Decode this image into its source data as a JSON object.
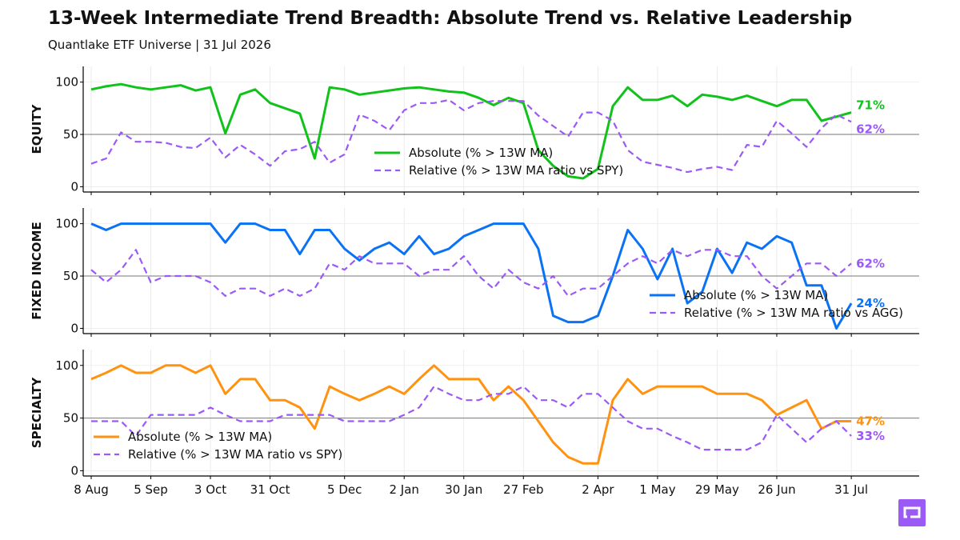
{
  "header": {
    "title": "13-Week Intermediate Trend Breadth: Absolute Trend vs. Relative Leadership",
    "subtitle": "Quantlake ETF Universe  |  31 Jul 2026"
  },
  "colors": {
    "equity": "#11c21b",
    "fixed_income": "#0a72f5",
    "specialty": "#ff9311",
    "relative": "#9b59f6",
    "logo": "#9b59f6"
  },
  "icons": {
    "logo": "brand-logo-icon"
  },
  "chart_data": [
    {
      "type": "line",
      "panel": "equity",
      "ylabel": "EQUITY",
      "ylim": [
        -5,
        115
      ],
      "yticks": [
        0,
        50,
        100
      ],
      "reference_line": 50,
      "grid": true,
      "x": [
        "2025-08-08",
        "2025-08-15",
        "2025-08-22",
        "2025-08-29",
        "2025-09-05",
        "2025-09-12",
        "2025-09-19",
        "2025-09-26",
        "2025-10-03",
        "2025-10-10",
        "2025-10-17",
        "2025-10-24",
        "2025-10-31",
        "2025-11-07",
        "2025-11-14",
        "2025-11-21",
        "2025-11-28",
        "2025-12-05",
        "2025-12-12",
        "2025-12-19",
        "2025-12-26",
        "2026-01-02",
        "2026-01-09",
        "2026-01-16",
        "2026-01-23",
        "2026-01-30",
        "2026-02-06",
        "2026-02-13",
        "2026-02-20",
        "2026-02-27",
        "2026-03-06",
        "2026-03-13",
        "2026-03-20",
        "2026-03-27",
        "2026-04-03",
        "2026-04-10",
        "2026-04-17",
        "2026-04-24",
        "2026-05-01",
        "2026-05-08",
        "2026-05-15",
        "2026-05-22",
        "2026-05-29",
        "2026-06-05",
        "2026-06-12",
        "2026-06-19",
        "2026-06-26",
        "2026-07-03",
        "2026-07-10",
        "2026-07-17",
        "2026-07-24",
        "2026-07-31"
      ],
      "series": [
        {
          "name": "Absolute (% > 13W MA)",
          "style": "solid",
          "end_label": "71%",
          "values": [
            93,
            96,
            98,
            95,
            93,
            95,
            97,
            92,
            95,
            51,
            88,
            93,
            80,
            75,
            70,
            27,
            95,
            93,
            88,
            90,
            92,
            94,
            95,
            93,
            91,
            90,
            85,
            78,
            85,
            80,
            35,
            20,
            10,
            8,
            17,
            77,
            95,
            83,
            83,
            87,
            77,
            88,
            86,
            83,
            87,
            82,
            77,
            83,
            83,
            63,
            67,
            71
          ]
        },
        {
          "name": "Relative (% > 13W MA ratio vs SPY)",
          "style": "dashed",
          "end_label": "62%",
          "values": [
            22,
            27,
            52,
            43,
            43,
            42,
            38,
            37,
            47,
            28,
            40,
            31,
            20,
            34,
            36,
            43,
            23,
            31,
            69,
            63,
            54,
            73,
            80,
            80,
            83,
            73,
            80,
            82,
            82,
            82,
            68,
            58,
            48,
            71,
            71,
            63,
            35,
            24,
            21,
            18,
            14,
            17,
            19,
            16,
            40,
            38,
            63,
            51,
            38,
            56,
            69,
            62
          ]
        }
      ],
      "legend_position": "center-bottom"
    },
    {
      "type": "line",
      "panel": "fixed_income",
      "ylabel": "FIXED INCOME",
      "ylim": [
        -5,
        115
      ],
      "yticks": [
        0,
        50,
        100
      ],
      "reference_line": 50,
      "grid": true,
      "series": [
        {
          "name": "Absolute (% > 13W MA)",
          "style": "solid",
          "end_label": "24%",
          "values": [
            100,
            94,
            100,
            100,
            100,
            100,
            100,
            100,
            100,
            82,
            100,
            100,
            94,
            94,
            71,
            94,
            94,
            76,
            65,
            76,
            82,
            71,
            88,
            71,
            76,
            88,
            94,
            100,
            100,
            100,
            76,
            12,
            6,
            6,
            12,
            50,
            94,
            76,
            47,
            76,
            24,
            35,
            76,
            53,
            82,
            76,
            88,
            82,
            41,
            41,
            0,
            24
          ]
        },
        {
          "name": "Relative (% > 13W MA ratio vs AGG)",
          "style": "dashed",
          "end_label": "62%",
          "values": [
            56,
            44,
            56,
            75,
            44,
            50,
            50,
            50,
            44,
            31,
            38,
            38,
            31,
            38,
            31,
            38,
            62,
            56,
            69,
            62,
            62,
            62,
            50,
            56,
            56,
            69,
            50,
            38,
            56,
            44,
            38,
            50,
            31,
            38,
            38,
            50,
            62,
            69,
            62,
            75,
            69,
            75,
            75,
            69,
            69,
            50,
            38,
            50,
            62,
            62,
            50,
            62
          ]
        }
      ],
      "legend_position": "lower-right"
    },
    {
      "type": "line",
      "panel": "specialty",
      "ylabel": "SPECIALTY",
      "ylim": [
        -5,
        115
      ],
      "yticks": [
        0,
        50,
        100
      ],
      "reference_line": 50,
      "grid": true,
      "xtick_labels": [
        {
          "label": "8 Aug",
          "index": 0
        },
        {
          "label": "5 Sep",
          "index": 4
        },
        {
          "label": "3 Oct",
          "index": 8
        },
        {
          "label": "31 Oct",
          "index": 12
        },
        {
          "label": "5 Dec",
          "index": 17
        },
        {
          "label": "2 Jan",
          "index": 21
        },
        {
          "label": "30 Jan",
          "index": 25
        },
        {
          "label": "27 Feb",
          "index": 29
        },
        {
          "label": "2 Apr",
          "index": 34
        },
        {
          "label": "1 May",
          "index": 38
        },
        {
          "label": "29 May",
          "index": 42
        },
        {
          "label": "26 Jun",
          "index": 46
        },
        {
          "label": "31 Jul",
          "index": 51
        }
      ],
      "series": [
        {
          "name": "Absolute (% > 13W MA)",
          "style": "solid",
          "end_label": "47%",
          "values": [
            87,
            93,
            100,
            93,
            93,
            100,
            100,
            93,
            100,
            73,
            87,
            87,
            67,
            67,
            60,
            40,
            80,
            73,
            67,
            73,
            80,
            73,
            87,
            100,
            87,
            87,
            87,
            67,
            80,
            67,
            47,
            27,
            13,
            7,
            7,
            67,
            87,
            73,
            80,
            80,
            80,
            80,
            73,
            73,
            73,
            67,
            53,
            60,
            67,
            40,
            47,
            47
          ]
        },
        {
          "name": "Relative (% > 13W MA ratio vs SPY)",
          "style": "dashed",
          "end_label": "33%",
          "values": [
            47,
            47,
            47,
            33,
            53,
            53,
            53,
            53,
            60,
            53,
            47,
            47,
            47,
            53,
            53,
            53,
            53,
            47,
            47,
            47,
            47,
            53,
            60,
            80,
            73,
            67,
            67,
            73,
            73,
            80,
            67,
            67,
            60,
            73,
            73,
            60,
            47,
            40,
            40,
            33,
            27,
            20,
            20,
            20,
            20,
            27,
            53,
            40,
            27,
            40,
            47,
            33
          ]
        }
      ],
      "legend_position": "lower-left"
    }
  ]
}
